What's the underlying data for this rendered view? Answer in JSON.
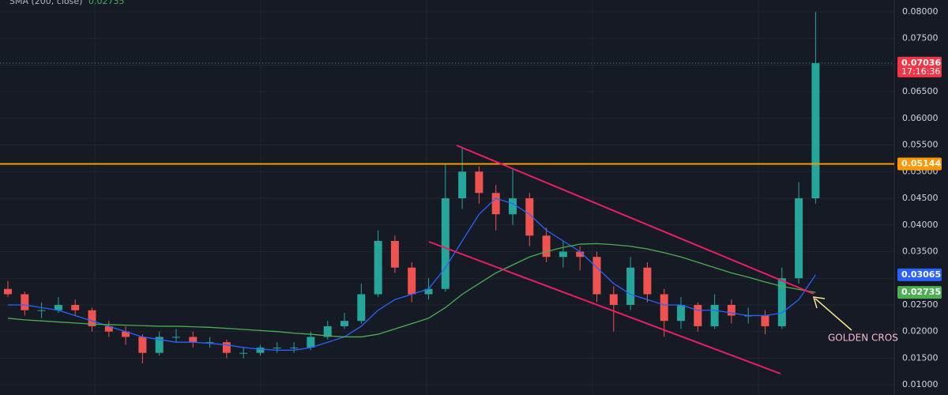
{
  "chart_data": {
    "type": "candlestick",
    "categories": [
      null,
      null,
      null,
      null,
      null,
      null,
      null,
      null,
      null,
      null,
      null,
      null,
      null,
      null,
      null,
      null,
      null,
      null,
      null,
      null,
      null,
      null,
      null,
      null,
      null,
      null,
      null,
      null,
      null,
      null,
      null,
      null,
      null,
      null,
      null,
      null,
      null,
      null,
      null,
      null,
      null,
      null,
      null,
      null,
      null,
      null,
      null,
      null,
      null
    ],
    "open": [
      0.028,
      0.027,
      0.024,
      0.024,
      0.025,
      0.024,
      0.021,
      0.02,
      0.019,
      0.016,
      0.019,
      0.019,
      0.018,
      0.018,
      0.016,
      0.016,
      0.017,
      0.017,
      0.017,
      0.019,
      0.021,
      0.022,
      0.027,
      0.037,
      0.032,
      0.027,
      0.028,
      0.045,
      0.05,
      0.046,
      0.042,
      0.045,
      0.038,
      0.034,
      0.035,
      0.034,
      0.027,
      0.025,
      0.032,
      0.027,
      0.022,
      0.025,
      0.021,
      0.025,
      0.023,
      0.023,
      0.021,
      0.03,
      0.045
    ],
    "high": [
      0.0295,
      0.0275,
      0.0255,
      0.0265,
      0.026,
      0.0245,
      0.022,
      0.021,
      0.0195,
      0.02,
      0.0205,
      0.02,
      0.019,
      0.0185,
      0.017,
      0.0175,
      0.018,
      0.018,
      0.02,
      0.022,
      0.0235,
      0.029,
      0.039,
      0.038,
      0.033,
      0.03,
      0.0515,
      0.0545,
      0.051,
      0.0475,
      0.0505,
      0.046,
      0.0395,
      0.037,
      0.036,
      0.035,
      0.0285,
      0.034,
      0.033,
      0.028,
      0.0265,
      0.0255,
      0.027,
      0.026,
      0.0245,
      0.024,
      0.032,
      0.048,
      0.08
    ],
    "low": [
      0.0265,
      0.023,
      0.0225,
      0.0235,
      0.023,
      0.02,
      0.019,
      0.0175,
      0.014,
      0.0155,
      0.018,
      0.017,
      0.017,
      0.015,
      0.015,
      0.0155,
      0.016,
      0.016,
      0.0165,
      0.0185,
      0.0205,
      0.0215,
      0.0265,
      0.031,
      0.0255,
      0.026,
      0.0275,
      0.043,
      0.044,
      0.039,
      0.04,
      0.036,
      0.033,
      0.032,
      0.0315,
      0.0255,
      0.02,
      0.024,
      0.0255,
      0.019,
      0.0205,
      0.02,
      0.0205,
      0.0215,
      0.0215,
      0.0195,
      0.0205,
      0.029,
      0.044
    ],
    "close": [
      0.027,
      0.024,
      0.024,
      0.025,
      0.024,
      0.021,
      0.02,
      0.019,
      0.016,
      0.019,
      0.019,
      0.018,
      0.018,
      0.016,
      0.016,
      0.017,
      0.017,
      0.017,
      0.019,
      0.021,
      0.022,
      0.027,
      0.037,
      0.032,
      0.027,
      0.028,
      0.045,
      0.05,
      0.046,
      0.042,
      0.045,
      0.038,
      0.034,
      0.035,
      0.034,
      0.027,
      0.025,
      0.032,
      0.027,
      0.022,
      0.025,
      0.021,
      0.025,
      0.023,
      0.023,
      0.021,
      0.03,
      0.045,
      0.07036
    ],
    "up_color": "#26a69a",
    "down_color": "#ef5350",
    "series": [
      {
        "color": "#2962ff",
        "values": [
          0.025,
          0.025,
          0.0245,
          0.024,
          0.023,
          0.022,
          0.021,
          0.02,
          0.019,
          0.0185,
          0.018,
          0.018,
          0.0178,
          0.0175,
          0.017,
          0.0167,
          0.0165,
          0.0165,
          0.017,
          0.018,
          0.019,
          0.021,
          0.024,
          0.026,
          0.027,
          0.028,
          0.032,
          0.037,
          0.042,
          0.045,
          0.044,
          0.042,
          0.039,
          0.037,
          0.035,
          0.032,
          0.029,
          0.027,
          0.026,
          0.025,
          0.025,
          0.024,
          0.024,
          0.0235,
          0.023,
          0.023,
          0.0235,
          0.026,
          0.03065
        ]
      },
      {
        "name": "SMA (200, close)",
        "color": "#4caf50",
        "values": [
          0.0225,
          0.0222,
          0.022,
          0.0218,
          0.0216,
          0.0214,
          0.0213,
          0.0212,
          0.0211,
          0.021,
          0.021,
          0.0209,
          0.0208,
          0.0206,
          0.0204,
          0.0202,
          0.02,
          0.0197,
          0.0195,
          0.0192,
          0.019,
          0.019,
          0.0195,
          0.0205,
          0.0215,
          0.0225,
          0.0245,
          0.027,
          0.029,
          0.031,
          0.0325,
          0.034,
          0.035,
          0.0358,
          0.0364,
          0.0365,
          0.0363,
          0.036,
          0.0355,
          0.0348,
          0.034,
          0.033,
          0.032,
          0.031,
          0.0302,
          0.0293,
          0.0285,
          0.0279,
          0.02735
        ]
      }
    ],
    "hline": {
      "value": 0.05144,
      "color": "#ff9800"
    },
    "countdown": "17:16:36",
    "annotation": "GOLDEN CROS",
    "ylim": [
      0.0081,
      0.0822
    ],
    "yticks": [
      {
        "value": 0.08,
        "label": "0.08000"
      },
      {
        "value": 0.075,
        "label": "0.07500"
      },
      {
        "value": 0.07,
        "label": "0.07000"
      },
      {
        "value": 0.065,
        "label": "0.06500"
      },
      {
        "value": 0.06,
        "label": "0.06000"
      },
      {
        "value": 0.055,
        "label": "0.05500"
      },
      {
        "value": 0.05,
        "label": "0.05000"
      },
      {
        "value": 0.045,
        "label": "0.04500"
      },
      {
        "value": 0.04,
        "label": "0.04000"
      },
      {
        "value": 0.035,
        "label": "0.03500"
      },
      {
        "value": 0.03,
        "label": "0.03000"
      },
      {
        "value": 0.025,
        "label": "0.02500"
      },
      {
        "value": 0.02,
        "label": "0.02000"
      },
      {
        "value": 0.015,
        "label": "0.01500"
      },
      {
        "value": 0.01,
        "label": "0.01000"
      }
    ],
    "grid": true
  }
}
